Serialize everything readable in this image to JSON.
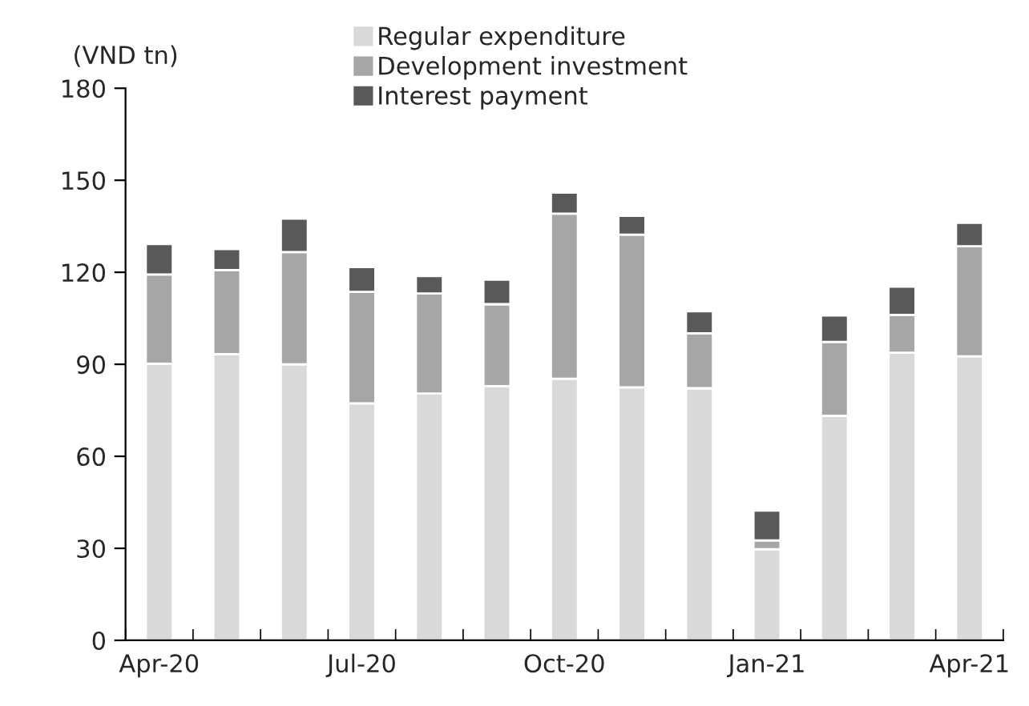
{
  "chart_data": {
    "type": "bar",
    "ylabel": "(VND tn)",
    "categories": [
      "Apr-20",
      null,
      null,
      "Jul-20",
      null,
      null,
      "Oct-20",
      null,
      null,
      "Jan-21",
      null,
      null,
      "Apr-21"
    ],
    "stacked": true,
    "series": [
      {
        "name": "Regular expenditure",
        "color": "#d9d9d9",
        "values": [
          90.2,
          93.3,
          90.0,
          77.3,
          80.5,
          82.9,
          85.3,
          82.5,
          82.2,
          29.7,
          73.2,
          93.8,
          92.6
        ]
      },
      {
        "name": "Development investment",
        "color": "#a6a6a6",
        "values": [
          29.1,
          27.4,
          36.6,
          36.3,
          32.6,
          26.7,
          53.8,
          49.8,
          17.9,
          2.9,
          24.1,
          12.3,
          35.9
        ]
      },
      {
        "name": "Interest payment",
        "color": "#595959",
        "values": [
          9.9,
          6.9,
          10.9,
          8.1,
          5.7,
          8.0,
          6.9,
          6.1,
          7.2,
          9.7,
          8.6,
          9.2,
          7.6
        ]
      }
    ],
    "ylim": [
      0,
      180
    ],
    "yticks": [
      0,
      30,
      60,
      90,
      120,
      150,
      180
    ],
    "grid": false,
    "legend": "top"
  }
}
